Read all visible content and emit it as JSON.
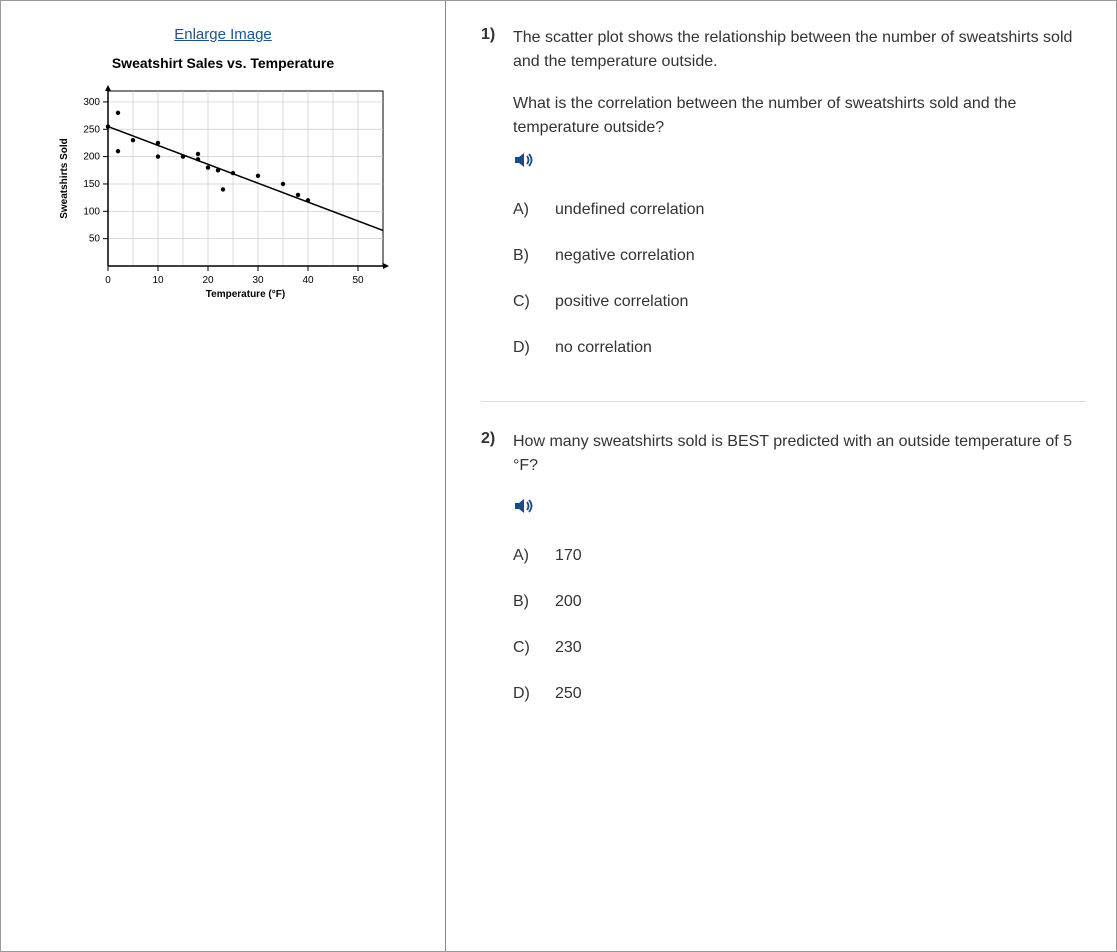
{
  "left": {
    "enlarge_label": "Enlarge Image",
    "chart_title": "Sweatshirt Sales vs. Temperature"
  },
  "chart": {
    "type": "scatter",
    "xlabel": "Temperature (°F)",
    "ylabel": "Sweatshirts Sold",
    "xlim": [
      0,
      55
    ],
    "ylim": [
      0,
      320
    ],
    "xtick_step": 10,
    "ytick_step": 50,
    "xticks": [
      0,
      10,
      20,
      30,
      40,
      50
    ],
    "yticks": [
      50,
      100,
      150,
      200,
      250,
      300
    ],
    "background_color": "#ffffff",
    "grid_color": "#cccccc",
    "axis_color": "#000000",
    "point_color": "#000000",
    "point_radius": 2.2,
    "line_color": "#000000",
    "line_width": 1.5,
    "trend_line": {
      "x1": 0,
      "y1": 255,
      "x2": 55,
      "y2": 65
    },
    "label_fontsize": 10,
    "tick_fontsize": 10,
    "points": [
      {
        "x": 2,
        "y": 280
      },
      {
        "x": 0,
        "y": 255
      },
      {
        "x": 5,
        "y": 230
      },
      {
        "x": 10,
        "y": 225
      },
      {
        "x": 2,
        "y": 210
      },
      {
        "x": 10,
        "y": 200
      },
      {
        "x": 15,
        "y": 200
      },
      {
        "x": 18,
        "y": 205
      },
      {
        "x": 18,
        "y": 195
      },
      {
        "x": 20,
        "y": 180
      },
      {
        "x": 22,
        "y": 175
      },
      {
        "x": 25,
        "y": 170
      },
      {
        "x": 30,
        "y": 165
      },
      {
        "x": 23,
        "y": 140
      },
      {
        "x": 35,
        "y": 150
      },
      {
        "x": 38,
        "y": 130
      },
      {
        "x": 40,
        "y": 120
      }
    ]
  },
  "audio_icon_color": "#1a4b8c",
  "q1": {
    "number": "1)",
    "intro": "The scatter plot shows the relationship between the number of sweatshirts sold and the temperature outside.",
    "prompt": "What is the correlation between the number of sweatshirts sold and the temperature outside?",
    "choices": {
      "A": {
        "letter": "A)",
        "text": "undefined correlation"
      },
      "B": {
        "letter": "B)",
        "text": "negative correlation"
      },
      "C": {
        "letter": "C)",
        "text": "positive correlation"
      },
      "D": {
        "letter": "D)",
        "text": "no correlation"
      }
    }
  },
  "q2": {
    "number": "2)",
    "intro": "How many sweatshirts sold is BEST predicted with an outside temperature of 5 °F?",
    "choices": {
      "A": {
        "letter": "A)",
        "text": "170"
      },
      "B": {
        "letter": "B)",
        "text": "200"
      },
      "C": {
        "letter": "C)",
        "text": "230"
      },
      "D": {
        "letter": "D)",
        "text": "250"
      }
    }
  }
}
